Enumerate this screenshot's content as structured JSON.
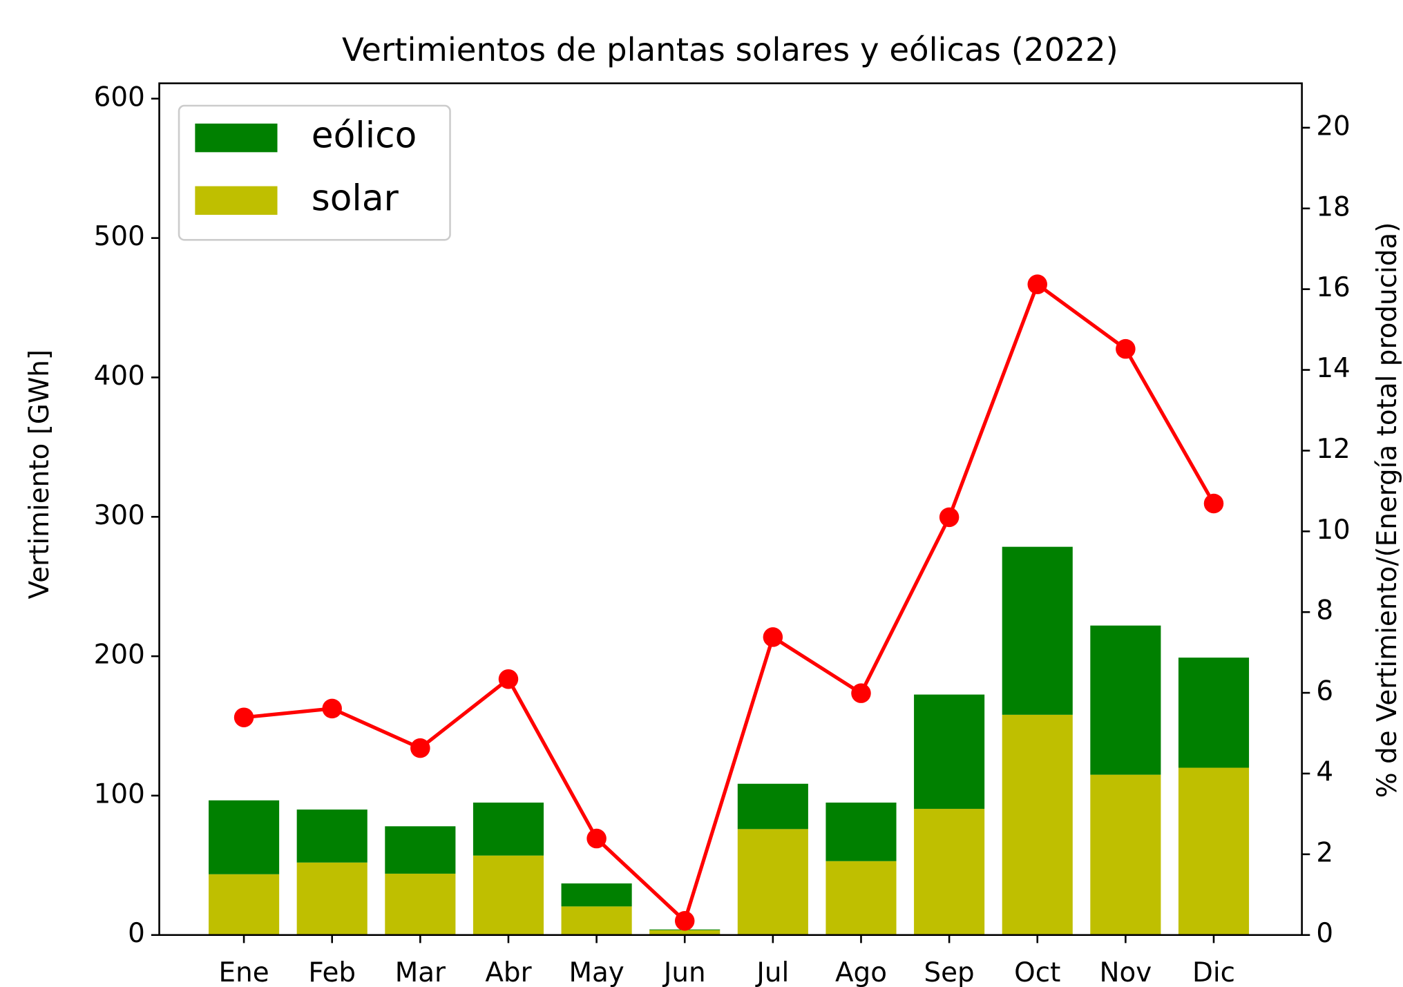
{
  "chart_data": {
    "type": "bar",
    "stacked": true,
    "title": "Vertimientos de plantas solares y eólicas (2022)",
    "y_label": "Vertimiento [GWh]",
    "y2_label": "% de Vertimiento/(Energía total producida)",
    "categories": [
      "Ene",
      "Feb",
      "Mar",
      "Abr",
      "May",
      "Jun",
      "Jul",
      "Ago",
      "Sep",
      "Oct",
      "Nov",
      "Dic"
    ],
    "series": [
      {
        "name": "eólico",
        "type": "bar",
        "color": "#008000",
        "values": [
          53,
          38,
          34,
          38,
          16.5,
          0.5,
          32.5,
          42,
          82,
          120.5,
          107,
          79
        ]
      },
      {
        "name": "solar",
        "type": "bar",
        "color": "#bfbf00",
        "values": [
          43.6,
          52,
          44,
          57,
          20.5,
          3.5,
          76,
          53,
          90.5,
          158,
          115,
          120
        ]
      },
      {
        "type": "line",
        "axis": "y2",
        "color": "#ff0000",
        "values": [
          5.39,
          5.61,
          4.63,
          6.34,
          2.39,
          0.35,
          7.38,
          5.99,
          10.35,
          16.12,
          14.52,
          10.69
        ]
      }
    ],
    "ylim": [
      0,
      611
    ],
    "yticks": [
      0,
      100,
      200,
      300,
      400,
      500,
      600
    ],
    "y2lim": [
      0,
      21.1
    ],
    "y2ticks": [
      0,
      2,
      4,
      6,
      8,
      10,
      12,
      14,
      16,
      18,
      20
    ],
    "legend": "upper left"
  }
}
